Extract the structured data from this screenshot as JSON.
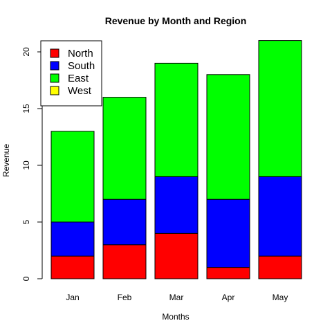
{
  "chart_data": {
    "type": "bar",
    "stacked": true,
    "title": "Revenue by Month and Region",
    "xlabel": "Months",
    "ylabel": "Revenue",
    "categories": [
      "Jan",
      "Feb",
      "Mar",
      "Apr",
      "May"
    ],
    "ylim": [
      0,
      21
    ],
    "yticks": [
      0,
      5,
      10,
      15,
      20
    ],
    "series": [
      {
        "name": "North",
        "color": "#ff0000",
        "values": [
          2,
          3,
          4,
          1,
          2
        ]
      },
      {
        "name": "South",
        "color": "#0000ff",
        "values": [
          3,
          4,
          5,
          6,
          7
        ]
      },
      {
        "name": "East",
        "color": "#00ff00",
        "values": [
          8,
          9,
          10,
          11,
          12
        ]
      },
      {
        "name": "West",
        "color": "#ffff00",
        "values": [
          0,
          0,
          0,
          0,
          0
        ]
      }
    ],
    "legend_position": "top-left",
    "grid": false
  }
}
